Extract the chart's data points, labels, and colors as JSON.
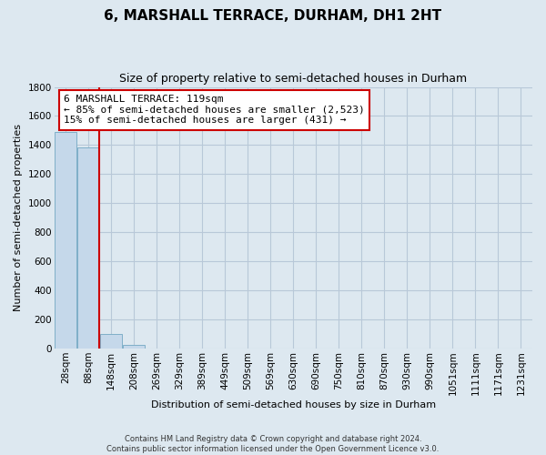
{
  "title": "6, MARSHALL TERRACE, DURHAM, DH1 2HT",
  "subtitle": "Size of property relative to semi-detached houses in Durham",
  "xlabel": "Distribution of semi-detached houses by size in Durham",
  "ylabel": "Number of semi-detached properties",
  "bar_labels": [
    "28sqm",
    "88sqm",
    "148sqm",
    "208sqm",
    "269sqm",
    "329sqm",
    "389sqm",
    "449sqm",
    "509sqm",
    "569sqm",
    "630sqm",
    "690sqm",
    "750sqm",
    "810sqm",
    "870sqm",
    "930sqm",
    "990sqm",
    "1051sqm",
    "1111sqm",
    "1171sqm",
    "1231sqm"
  ],
  "bar_values": [
    1490,
    1385,
    100,
    25,
    0,
    0,
    0,
    0,
    0,
    0,
    0,
    0,
    0,
    0,
    0,
    0,
    0,
    0,
    0,
    0,
    0
  ],
  "bar_color": "#c5d8ea",
  "bar_edge_color": "#7fafc8",
  "ylim": [
    0,
    1800
  ],
  "yticks": [
    0,
    200,
    400,
    600,
    800,
    1000,
    1200,
    1400,
    1600,
    1800
  ],
  "annotation_title": "6 MARSHALL TERRACE: 119sqm",
  "annotation_line1": "← 85% of semi-detached houses are smaller (2,523)",
  "annotation_line2": "15% of semi-detached houses are larger (431) →",
  "annotation_box_color": "#ffffff",
  "annotation_box_edge": "#cc0000",
  "red_line_color": "#cc0000",
  "red_line_x": 1.48,
  "footer1": "Contains HM Land Registry data © Crown copyright and database right 2024.",
  "footer2": "Contains public sector information licensed under the Open Government Licence v3.0.",
  "background_color": "#dde8f0",
  "grid_color": "#b8c8d8",
  "title_fontsize": 11,
  "subtitle_fontsize": 9,
  "ylabel_fontsize": 8,
  "xlabel_fontsize": 8,
  "tick_fontsize": 7.5,
  "annotation_fontsize": 8
}
